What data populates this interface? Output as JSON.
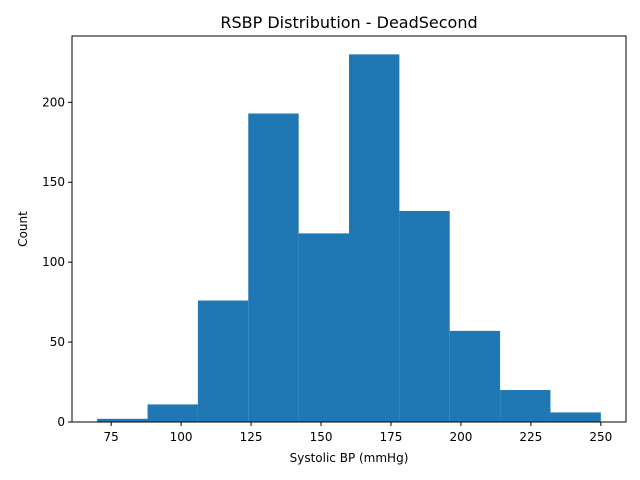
{
  "chart_data": {
    "type": "bar",
    "title": "RSBP Distribution - DeadSecond",
    "xlabel": "Systolic BP (mmHg)",
    "ylabel": "Count",
    "bar_color": "#1f77b4",
    "bin_edges": [
      70,
      88,
      106,
      124,
      142,
      160,
      178,
      196,
      214,
      232,
      250
    ],
    "values": [
      2,
      11,
      76,
      193,
      118,
      230,
      132,
      57,
      20,
      6
    ],
    "xlim": [
      61,
      259
    ],
    "ylim": [
      0,
      241.5
    ],
    "xticks": [
      75,
      100,
      125,
      150,
      175,
      200,
      225,
      250
    ],
    "yticks": [
      0,
      50,
      100,
      150,
      200
    ],
    "grid": false,
    "legend": "none"
  }
}
